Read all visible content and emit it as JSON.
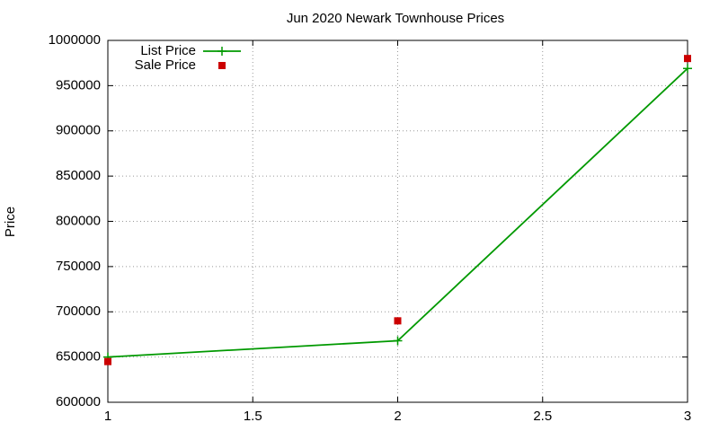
{
  "chart_data": {
    "type": "line",
    "title": "Jun 2020 Newark Townhouse Prices",
    "y_label": "Price",
    "x": [
      1,
      2,
      3
    ],
    "series": [
      {
        "name": "List Price",
        "color": "#009900",
        "mode": "lines+markers",
        "values": [
          650000,
          668000,
          969000
        ]
      },
      {
        "name": "Sale Price",
        "color": "#cc0000",
        "mode": "markers",
        "values": [
          645000,
          690000,
          980000
        ]
      }
    ],
    "xlim": [
      1,
      3
    ],
    "xticks": [
      1,
      1.5,
      2,
      2.5,
      3
    ],
    "ylim": [
      600000,
      1000000
    ],
    "yticks": [
      600000,
      650000,
      700000,
      750000,
      800000,
      850000,
      900000,
      950000,
      1000000
    ],
    "grid": true,
    "legend": "top-left"
  }
}
